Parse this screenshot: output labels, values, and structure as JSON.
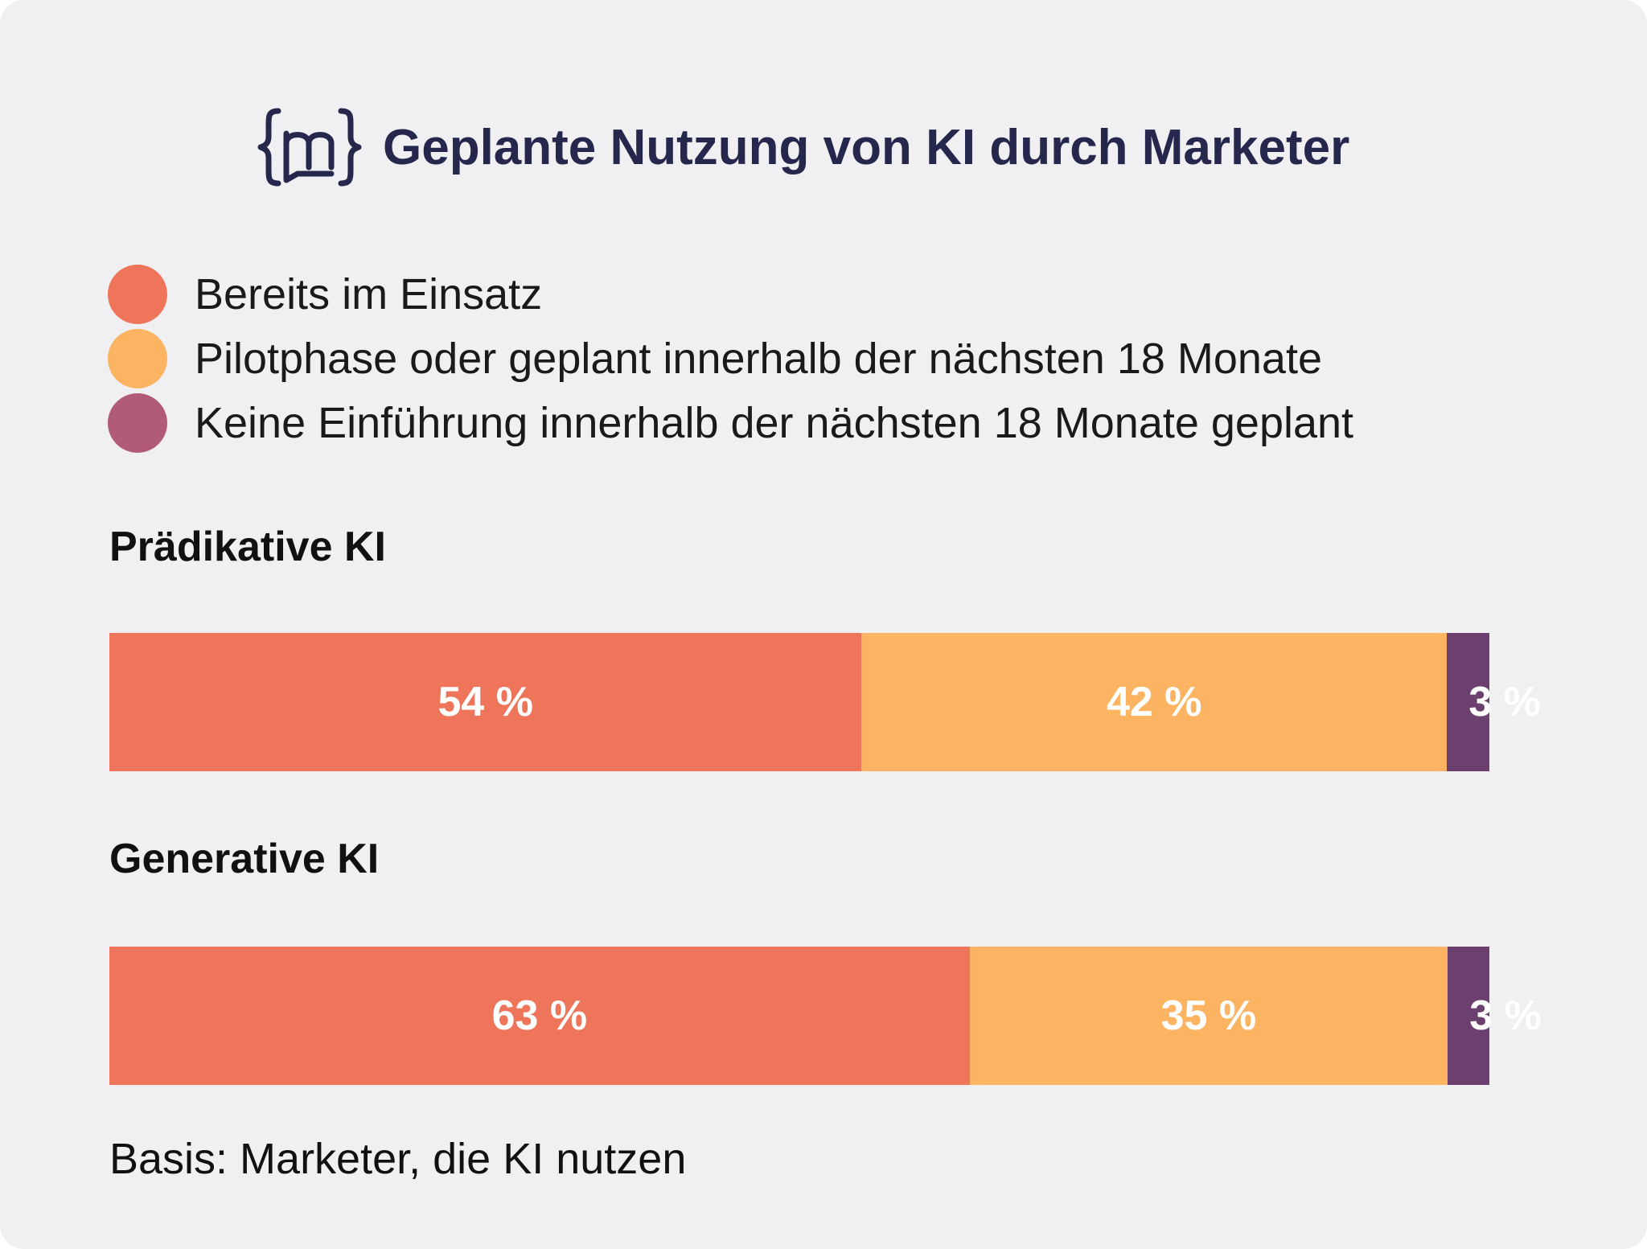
{
  "title": "Geplante Nutzung von KI durch Marketer",
  "logo_icon": "m-speech-bracket-logo",
  "colors": {
    "background": "#f0eff1",
    "title": "#26274d",
    "in_use": "#ef755a",
    "pilot": "#fdb462",
    "none": "#6b3f6e",
    "none_legend": "#b25b79"
  },
  "legend": [
    {
      "label": "Bereits im Einsatz",
      "color": "#ef755a"
    },
    {
      "label": "Pilotphase oder geplant innerhalb der nächsten 18 Monate",
      "color": "#fdb462"
    },
    {
      "label": "Keine Einführung innerhalb der nächsten 18 Monate geplant",
      "color": "#b25b79"
    }
  ],
  "footnote": "Basis: Marketer, die KI nutzen",
  "chart_data": {
    "type": "bar",
    "orientation": "horizontal",
    "stacked": true,
    "title": "Geplante Nutzung von KI durch Marketer",
    "categories": [
      "Prädikative KI",
      "Generative KI"
    ],
    "series": [
      {
        "name": "Bereits im Einsatz",
        "values": [
          54,
          63
        ],
        "labels": [
          "54 %",
          "63 %"
        ],
        "color": "#ef755a"
      },
      {
        "name": "Pilotphase oder geplant innerhalb der nächsten 18 Monate",
        "values": [
          42,
          35
        ],
        "labels": [
          "42 %",
          "35 %"
        ],
        "color": "#fdb462"
      },
      {
        "name": "Keine Einführung innerhalb der nächsten 18 Monate geplant",
        "values": [
          3,
          3
        ],
        "labels": [
          "3 %",
          "3 %"
        ],
        "color": "#6b3f6e"
      }
    ],
    "legend": "top",
    "grid": false
  }
}
